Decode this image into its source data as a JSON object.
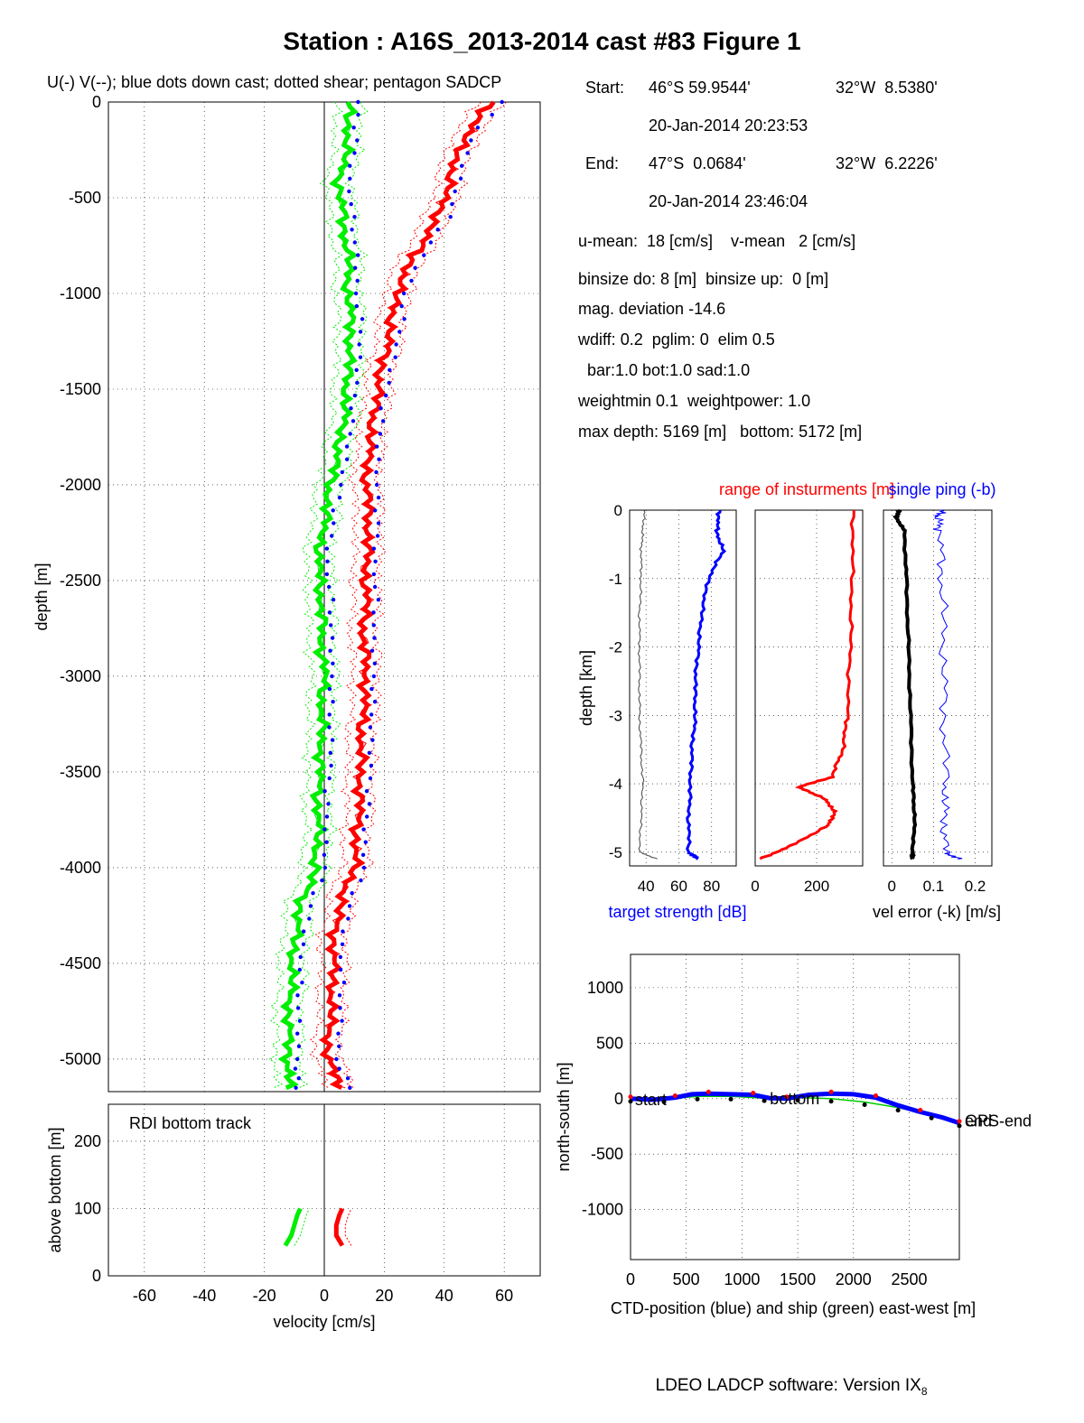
{
  "title": "Station : A16S_2013-2014 cast #83  Figure 1",
  "legend_caption": "U(-) V(--); blue dots down cast; dotted shear; pentagon SADCP",
  "info": {
    "start_label": "Start:",
    "start_lat": "46°S 59.9544'",
    "start_lon": "32°W  8.5380'",
    "start_time": "20-Jan-2014 20:23:53",
    "end_label": "End:",
    "end_lat": "47°S  0.0684'",
    "end_lon": "32°W  6.2226'",
    "end_time": "20-Jan-2014 23:46:04",
    "means": "u-mean:  18 [cm/s]    v-mean   2 [cm/s]",
    "binsize": "binsize do: 8 [m]  binsize up:  0 [m]",
    "mag_dev": "mag. deviation -14.6",
    "wdiff": "wdiff: 0.2  pglim: 0  elim 0.5",
    "bar": "  bar:1.0 bot:1.0 sad:1.0",
    "weight": "weightmin 0.1  weightpower: 1.0",
    "depth": "max depth: 5169 [m]   bottom: 5172 [m]"
  },
  "footer": {
    "software": "LDEO LADCP software: Version IX",
    "software_sub": "8"
  },
  "colors": {
    "u": "#ff0000",
    "v": "#00ee00",
    "downcast": "#0000ff",
    "ship": "#00cc00",
    "axis": "#000000"
  },
  "chart_data": [
    {
      "type": "line",
      "name": "velocity-profile",
      "xlabel": "",
      "ylabel": "depth [m]",
      "xlim": [
        -72,
        72
      ],
      "ylim": [
        -5170,
        0
      ],
      "xticks": [
        -60,
        -40,
        -20,
        0,
        20,
        40,
        60
      ],
      "yticks": [
        -5000,
        -4500,
        -4000,
        -3500,
        -3000,
        -2500,
        -2000,
        -1500,
        -1000,
        -500,
        0
      ],
      "grid": true,
      "depth": [
        0,
        -200,
        -400,
        -600,
        -800,
        -1000,
        -1200,
        -1400,
        -1600,
        -1800,
        -2000,
        -2200,
        -2400,
        -2600,
        -2800,
        -3000,
        -3200,
        -3400,
        -3600,
        -3800,
        -4000,
        -4200,
        -4400,
        -4600,
        -4800,
        -5000,
        -5150
      ],
      "series": [
        {
          "name": "U",
          "values": [
            56,
            46,
            42,
            38,
            30,
            24,
            22,
            19,
            17,
            15,
            14,
            15,
            14,
            14,
            13,
            14,
            13,
            12,
            12,
            11,
            10,
            5,
            3,
            3,
            2,
            1,
            6
          ]
        },
        {
          "name": "V",
          "values": [
            8,
            8,
            5,
            6,
            8,
            8,
            9,
            8,
            7,
            5,
            2,
            0,
            -2,
            -1,
            -1,
            0,
            -1,
            -1,
            -2,
            -2,
            -3,
            -8,
            -10,
            -11,
            -12,
            -12,
            -12
          ]
        }
      ]
    },
    {
      "type": "line",
      "name": "bottom-track",
      "title": "RDI bottom track",
      "xlabel": "velocity [cm/s]",
      "ylabel": "above bottom [m]",
      "xlim": [
        -72,
        72
      ],
      "ylim": [
        0,
        255
      ],
      "xticks": [
        -60,
        -40,
        -20,
        0,
        20,
        40,
        60
      ],
      "yticks": [
        0,
        100,
        200
      ],
      "grid": true,
      "height": [
        45,
        60,
        75,
        90,
        100
      ],
      "series": [
        {
          "name": "U",
          "values": [
            6,
            4,
            4,
            5,
            6
          ]
        },
        {
          "name": "V",
          "values": [
            -13,
            -11,
            -10,
            -9,
            -8
          ]
        }
      ]
    },
    {
      "type": "line",
      "name": "target-strength",
      "title": "",
      "xlabel": "target strength [dB]",
      "ylabel": "depth [km]",
      "xlim": [
        30,
        95
      ],
      "ylim": [
        -5.2,
        0
      ],
      "xticks": [
        40,
        60,
        80
      ],
      "yticks": [
        -5,
        -4,
        -3,
        -2,
        -1,
        0
      ],
      "grid": true,
      "depth": [
        0,
        -0.3,
        -0.6,
        -1,
        -1.5,
        -2,
        -2.5,
        -3,
        -3.5,
        -4,
        -4.5,
        -5,
        -5.1
      ],
      "series": [
        {
          "name": "target strength",
          "values": [
            85,
            83,
            87,
            78,
            74,
            72,
            70,
            70,
            68,
            67,
            66,
            66,
            72
          ]
        },
        {
          "name": "reference",
          "values": [
            39,
            38,
            37,
            37,
            36,
            36,
            36,
            36,
            37,
            38,
            37,
            36,
            47
          ]
        }
      ]
    },
    {
      "type": "line",
      "name": "instrument-range",
      "title": "range of insturments [m]",
      "xlabel": "",
      "xlim": [
        0,
        350
      ],
      "ylim": [
        -5.2,
        0
      ],
      "xticks": [
        0,
        200
      ],
      "grid": true,
      "depth": [
        0,
        -1,
        -2,
        -3,
        -3.5,
        -3.9,
        -4.05,
        -4.2,
        -4.4,
        -4.6,
        -4.9,
        -5.1
      ],
      "series": [
        {
          "name": "range",
          "values": [
            320,
            315,
            310,
            300,
            285,
            250,
            140,
            220,
            260,
            240,
            120,
            15
          ]
        }
      ]
    },
    {
      "type": "line",
      "name": "velocity-error",
      "title": "single ping (-b)",
      "xlabel": "vel error (-k) [m/s]",
      "xlim": [
        -0.02,
        0.24
      ],
      "ylim": [
        -5.2,
        0
      ],
      "xticks": [
        0,
        0.1,
        0.2
      ],
      "grid": true,
      "depth": [
        0,
        -0.1,
        -0.3,
        -1,
        -2,
        -3,
        -4,
        -4.5,
        -5,
        -5.1
      ],
      "series": [
        {
          "name": "vel error",
          "values": [
            0.02,
            0.01,
            0.03,
            0.035,
            0.04,
            0.045,
            0.05,
            0.055,
            0.05,
            0.05
          ]
        },
        {
          "name": "single ping",
          "values": [
            0.12,
            0.11,
            0.115,
            0.12,
            0.125,
            0.125,
            0.13,
            0.125,
            0.13,
            0.16
          ]
        }
      ]
    },
    {
      "type": "line",
      "name": "position",
      "title": "",
      "xlabel": "CTD-position (blue) and ship (green) east-west [m]",
      "ylabel": "north-south [m]",
      "xlim": [
        0,
        2950
      ],
      "ylim": [
        -1450,
        1300
      ],
      "xticks": [
        0,
        500,
        1000,
        1500,
        2000,
        2500
      ],
      "yticks": [
        -1000,
        -500,
        0,
        500,
        1000
      ],
      "grid": true,
      "annotations": [
        "start",
        "bottom",
        "end",
        "GPS-end"
      ],
      "series": [
        {
          "name": "CTD",
          "x": [
            0,
            200,
            400,
            550,
            700,
            900,
            1100,
            1250,
            1400,
            1600,
            1800,
            2000,
            2200,
            2400,
            2600,
            2800,
            2950
          ],
          "y": [
            0,
            -10,
            10,
            40,
            45,
            40,
            35,
            5,
            0,
            35,
            45,
            40,
            10,
            -60,
            -120,
            -170,
            -220
          ]
        },
        {
          "name": "ship",
          "x": [
            0,
            300,
            600,
            900,
            1200,
            1500,
            1800,
            2100,
            2400,
            2700,
            2950
          ],
          "y": [
            0,
            -5,
            20,
            20,
            5,
            10,
            0,
            -30,
            -80,
            -150,
            -220
          ]
        }
      ]
    }
  ]
}
